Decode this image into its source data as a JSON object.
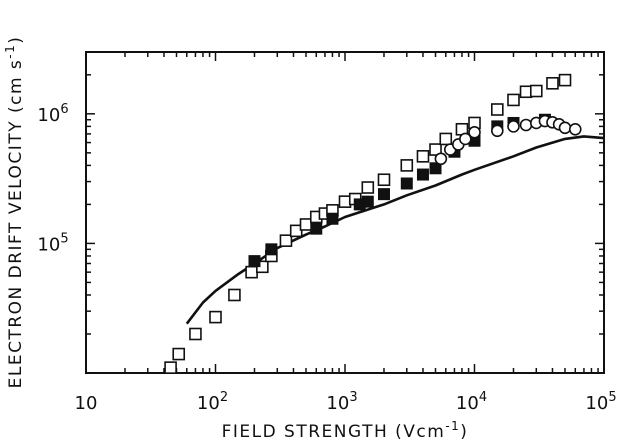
{
  "chart_data": {
    "type": "scatter",
    "title": "",
    "xlabel": {
      "main": "FIELD STRENGTH (Vcm",
      "sup": "-1",
      "end": ")"
    },
    "ylabel": {
      "main": "ELECTRON DRIFT VELOCITY (cm s",
      "sup": "-1",
      "end": ")"
    },
    "x_scale": "log",
    "y_scale": "log",
    "xlim": [
      10,
      100000
    ],
    "ylim": [
      10000,
      3000000
    ],
    "x_ticks": [
      {
        "base": "10",
        "exp": ""
      },
      {
        "base": "10",
        "exp": "2"
      },
      {
        "base": "10",
        "exp": "3"
      },
      {
        "base": "10",
        "exp": "4"
      },
      {
        "base": "10",
        "exp": "5"
      }
    ],
    "y_ticks": [
      {
        "base": "10",
        "exp": "5"
      },
      {
        "base": "10",
        "exp": "6"
      }
    ],
    "grid": false,
    "legend": "none",
    "series": [
      {
        "marker": "open-square",
        "x": [
          45,
          52,
          70,
          100,
          140,
          190,
          230,
          270,
          350,
          420,
          500,
          600,
          700,
          800,
          1000,
          1200,
          1500,
          2000,
          3000,
          4000,
          5000,
          6000,
          8000,
          10000,
          15000,
          20000,
          25000,
          30000,
          40000,
          50000
        ],
        "y": [
          11000,
          14000,
          20000,
          27000,
          40000,
          60000,
          66000,
          80000,
          105000,
          125000,
          140000,
          160000,
          170000,
          180000,
          210000,
          220000,
          270000,
          310000,
          400000,
          470000,
          530000,
          640000,
          760000,
          850000,
          1080000,
          1280000,
          1480000,
          1500000,
          1720000,
          1820000
        ]
      },
      {
        "marker": "filled-square",
        "x": [
          200,
          270,
          600,
          800,
          1300,
          1500,
          2000,
          3000,
          4000,
          5000,
          7000,
          10000,
          15000,
          20000,
          35000
        ],
        "y": [
          73000,
          90000,
          130000,
          155000,
          200000,
          210000,
          240000,
          290000,
          340000,
          380000,
          510000,
          620000,
          800000,
          850000,
          900000
        ]
      },
      {
        "marker": "open-circle",
        "x": [
          5500,
          6500,
          7500,
          8500,
          10000,
          15000,
          20000,
          25000,
          30000,
          35000,
          40000,
          45000,
          50000,
          60000
        ],
        "y": [
          450000,
          530000,
          580000,
          640000,
          720000,
          740000,
          800000,
          820000,
          850000,
          880000,
          860000,
          830000,
          780000,
          760000
        ]
      },
      {
        "marker": "solid-line",
        "x": [
          60,
          80,
          100,
          150,
          200,
          300,
          500,
          700,
          1000,
          2000,
          3000,
          5000,
          8000,
          10000,
          20000,
          30000,
          50000,
          70000,
          100000
        ],
        "y": [
          24000,
          35000,
          43000,
          58000,
          70000,
          92000,
          117000,
          135000,
          160000,
          200000,
          235000,
          280000,
          340000,
          370000,
          470000,
          550000,
          640000,
          670000,
          650000
        ]
      }
    ]
  }
}
